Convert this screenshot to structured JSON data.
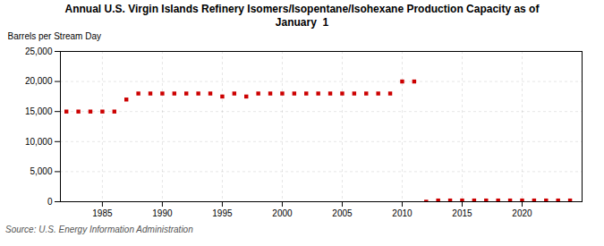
{
  "chart_data": {
    "type": "scatter",
    "title": "Annual U.S. Virgin Islands Refinery Isomers/Isopentane/Isohexane Production Capacity as of\nJanuary  1",
    "ylabel": "Barrels per Stream Day",
    "source": "Source: U.S. Energy Information Administration",
    "x": [
      1982,
      1983,
      1984,
      1985,
      1986,
      1987,
      1988,
      1989,
      1990,
      1991,
      1992,
      1993,
      1994,
      1995,
      1996,
      1997,
      1998,
      1999,
      2000,
      2001,
      2002,
      2003,
      2004,
      2005,
      2006,
      2007,
      2008,
      2009,
      2010,
      2011,
      2012,
      2013,
      2014,
      2015,
      2016,
      2017,
      2018,
      2019,
      2020,
      2021,
      2022,
      2023,
      2024
    ],
    "values": [
      15000,
      15000,
      15000,
      15000,
      15000,
      17000,
      18000,
      18000,
      18000,
      18000,
      18000,
      18000,
      18000,
      17500,
      18000,
      17500,
      18000,
      18000,
      18000,
      18000,
      18000,
      18000,
      18000,
      18000,
      18000,
      18000,
      18000,
      18000,
      20000,
      20000,
      0,
      200,
      200,
      200,
      200,
      200,
      200,
      200,
      200,
      200,
      200,
      200,
      200
    ],
    "color": "#cc0000",
    "marker": "square",
    "grid": true,
    "xlim": [
      1981.5,
      2025
    ],
    "xticks": [
      1985,
      1990,
      1995,
      2000,
      2005,
      2010,
      2015,
      2020
    ],
    "ylim": [
      0,
      25000
    ],
    "yticks": [
      0,
      {
        "value": 5000,
        "label": "5,000"
      },
      {
        "value": 10000,
        "label": "10,000"
      },
      {
        "value": 15000,
        "label": "15,000"
      },
      {
        "value": 20000,
        "label": "20,000"
      },
      {
        "value": 25000,
        "label": "25,000"
      }
    ]
  }
}
